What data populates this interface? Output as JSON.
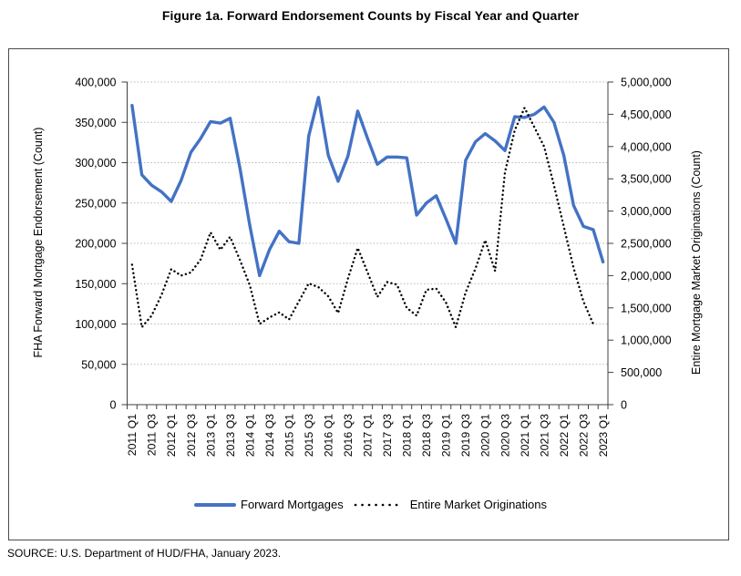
{
  "title": "Figure 1a. Forward Endorsement Counts by Fiscal Year and Quarter",
  "source": "SOURCE: U.S. Department of HUD/FHA, January 2023.",
  "chart_data": {
    "type": "line",
    "title": "Figure 1a. Forward Endorsement Counts by Fiscal Year and Quarter",
    "grid": true,
    "legend_position": "bottom",
    "x_label_every": 2,
    "categories": [
      "2011 Q1",
      "2011 Q2",
      "2011 Q3",
      "2011 Q4",
      "2012 Q1",
      "2012 Q2",
      "2012 Q3",
      "2012 Q4",
      "2013 Q1",
      "2013 Q2",
      "2013 Q3",
      "2013 Q4",
      "2014 Q1",
      "2014 Q2",
      "2014 Q3",
      "2014 Q4",
      "2015 Q1",
      "2015 Q2",
      "2015 Q3",
      "2015 Q4",
      "2016 Q1",
      "2016 Q2",
      "2016 Q3",
      "2016 Q4",
      "2017 Q1",
      "2017 Q2",
      "2017 Q3",
      "2017 Q4",
      "2018 Q1",
      "2018 Q2",
      "2018 Q3",
      "2018 Q4",
      "2019 Q1",
      "2019 Q2",
      "2019 Q3",
      "2019 Q4",
      "2020 Q1",
      "2020 Q2",
      "2020 Q3",
      "2020 Q4",
      "2021 Q1",
      "2021 Q2",
      "2021 Q3",
      "2021 Q4",
      "2022 Q1",
      "2022 Q2",
      "2022 Q3",
      "2022 Q4",
      "2023 Q1"
    ],
    "series": [
      {
        "name": "Forward Mortgages",
        "axis": "left",
        "style": "solid",
        "color": "#4472C4",
        "values": [
          371000,
          285000,
          272000,
          264000,
          252000,
          278000,
          313000,
          330000,
          351000,
          349000,
          355000,
          293000,
          222000,
          160000,
          192000,
          215000,
          202000,
          200000,
          333000,
          381000,
          309000,
          277000,
          308000,
          364000,
          330000,
          298000,
          307000,
          307000,
          306000,
          235000,
          250000,
          259000,
          230000,
          200000,
          303000,
          326000,
          336000,
          327000,
          315000,
          357000,
          356000,
          360000,
          369000,
          350000,
          309000,
          247000,
          221000,
          217000,
          177000
        ]
      },
      {
        "name": "Entire Market Originations",
        "axis": "right",
        "style": "dotted",
        "color": "#000000",
        "values": [
          2170000,
          1200000,
          1380000,
          1700000,
          2100000,
          2000000,
          2050000,
          2250000,
          2670000,
          2400000,
          2600000,
          2240000,
          1850000,
          1250000,
          1350000,
          1430000,
          1320000,
          1600000,
          1880000,
          1820000,
          1680000,
          1420000,
          1950000,
          2430000,
          2050000,
          1670000,
          1900000,
          1860000,
          1500000,
          1380000,
          1780000,
          1800000,
          1580000,
          1200000,
          1740000,
          2110000,
          2550000,
          2070000,
          3600000,
          4250000,
          4600000,
          4300000,
          4000000,
          3400000,
          2760000,
          2120000,
          1600000,
          1250000,
          null
        ]
      }
    ],
    "left_axis": {
      "label": "FHA Forward Mortgage Endorsement (Count)",
      "min": 0,
      "max": 400000,
      "step": 50000,
      "tick_labels": [
        "400,000",
        "350,000",
        "300,000",
        "250,000",
        "200,000",
        "150,000",
        "100,000",
        "50,000",
        "0"
      ]
    },
    "right_axis": {
      "label": "Entire Mortgage Market Originations (Count)",
      "min": 0,
      "max": 5000000,
      "step": 500000,
      "tick_labels": [
        "5,000,000",
        "4,500,000",
        "4,000,000",
        "3,500,000",
        "3,000,000",
        "2,500,000",
        "2,000,000",
        "1,500,000",
        "1,000,000",
        "500,000",
        "0"
      ]
    },
    "colors": {
      "forward_line": "#4472C4",
      "market_line": "#000000",
      "gridline": "#b7b7b7",
      "axis": "#404040"
    }
  }
}
